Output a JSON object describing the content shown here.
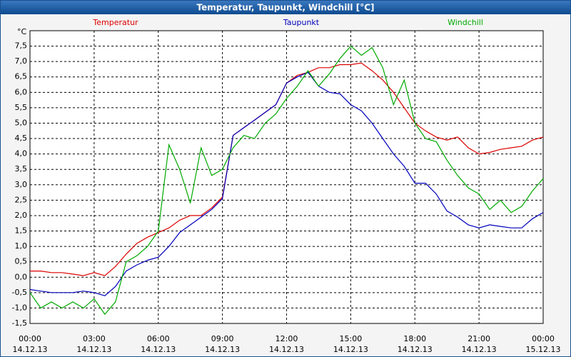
{
  "chart_data": {
    "type": "line",
    "title": "Temperatur, Taupunkt, Windchill [°C]",
    "y_unit": "°C",
    "x": [
      0,
      0.5,
      1,
      1.5,
      2,
      2.5,
      3,
      3.5,
      4,
      4.5,
      5,
      5.5,
      6,
      6.5,
      7,
      7.5,
      8,
      8.5,
      9,
      9.5,
      10,
      10.5,
      11,
      11.5,
      12,
      12.5,
      13,
      13.5,
      14,
      14.5,
      15,
      15.5,
      16,
      16.5,
      17,
      17.5,
      18,
      18.5,
      19,
      19.5,
      20,
      20.5,
      21,
      21.5,
      22,
      22.5,
      23,
      23.5,
      24
    ],
    "series": [
      {
        "name": "Temperatur",
        "color": "#dd0000",
        "values": [
          0.2,
          0.2,
          0.15,
          0.15,
          0.1,
          0.05,
          0.15,
          0.05,
          0.35,
          0.75,
          1.1,
          1.3,
          1.45,
          1.6,
          1.85,
          2.0,
          2.0,
          2.25,
          2.6,
          4.6,
          4.85,
          5.1,
          5.35,
          5.6,
          6.3,
          6.55,
          6.65,
          6.8,
          6.8,
          6.9,
          6.9,
          6.95,
          6.7,
          6.4,
          6.0,
          5.5,
          5.0,
          4.75,
          4.55,
          4.45,
          4.55,
          4.2,
          4.0,
          4.05,
          4.15,
          4.2,
          4.25,
          4.45,
          4.55
        ]
      },
      {
        "name": "Taupunkt",
        "color": "#0000bb",
        "values": [
          -0.4,
          -0.45,
          -0.5,
          -0.5,
          -0.5,
          -0.45,
          -0.5,
          -0.6,
          -0.3,
          0.2,
          0.4,
          0.55,
          0.65,
          1.0,
          1.45,
          1.7,
          1.95,
          2.2,
          2.55,
          4.6,
          4.85,
          5.1,
          5.35,
          5.6,
          6.3,
          6.5,
          6.65,
          6.2,
          6.0,
          5.95,
          5.6,
          5.4,
          5.0,
          4.5,
          4.0,
          3.6,
          3.05,
          3.05,
          2.7,
          2.15,
          1.95,
          1.7,
          1.6,
          1.7,
          1.65,
          1.6,
          1.6,
          1.9,
          2.1
        ]
      },
      {
        "name": "Windchill",
        "color": "#00aa00",
        "values": [
          -0.5,
          -1.0,
          -0.8,
          -1.0,
          -0.8,
          -1.0,
          -0.7,
          -1.2,
          -0.8,
          0.5,
          0.7,
          1.0,
          1.5,
          4.3,
          3.5,
          2.4,
          4.2,
          3.3,
          3.5,
          4.2,
          4.6,
          4.5,
          5.0,
          5.3,
          5.8,
          6.2,
          6.7,
          6.2,
          6.6,
          7.1,
          7.5,
          7.2,
          7.45,
          6.8,
          5.6,
          6.4,
          5.0,
          4.5,
          4.4,
          3.8,
          3.3,
          2.9,
          2.7,
          2.2,
          2.5,
          2.1,
          2.3,
          2.8,
          3.2
        ]
      }
    ],
    "xlim": [
      0,
      24
    ],
    "xticks": [
      {
        "value": 0,
        "label": "00:00"
      },
      {
        "value": 3,
        "label": "03:00"
      },
      {
        "value": 6,
        "label": "06:00"
      },
      {
        "value": 9,
        "label": "09:00"
      },
      {
        "value": 12,
        "label": "12:00"
      },
      {
        "value": 15,
        "label": "15:00"
      },
      {
        "value": 18,
        "label": "18:00"
      },
      {
        "value": 21,
        "label": "21:00"
      },
      {
        "value": 24,
        "label": "00:00"
      }
    ],
    "xtick_dates": [
      "14.12.13",
      "14.12.13",
      "14.12.13",
      "14.12.13",
      "14.12.13",
      "14.12.13",
      "14.12.13",
      "14.12.13",
      "15.12.13"
    ],
    "ylim": [
      -1.5,
      8
    ],
    "yticks": [
      {
        "value": -1.5,
        "label": "-1,5"
      },
      {
        "value": -1,
        "label": "-1,0"
      },
      {
        "value": -0.5,
        "label": "-0,5"
      },
      {
        "value": 0,
        "label": "0,0"
      },
      {
        "value": 0.5,
        "label": "0,5"
      },
      {
        "value": 1,
        "label": "1,0"
      },
      {
        "value": 1.5,
        "label": "1,5"
      },
      {
        "value": 2,
        "label": "2,0"
      },
      {
        "value": 2.5,
        "label": "2,5"
      },
      {
        "value": 3,
        "label": "3,0"
      },
      {
        "value": 3.5,
        "label": "3,5"
      },
      {
        "value": 4,
        "label": "4,0"
      },
      {
        "value": 4.5,
        "label": "4,5"
      },
      {
        "value": 5,
        "label": "5,0"
      },
      {
        "value": 5.5,
        "label": "5,5"
      },
      {
        "value": 6,
        "label": "6,0"
      },
      {
        "value": 6.5,
        "label": "6,5"
      },
      {
        "value": 7,
        "label": "7,0"
      },
      {
        "value": 7.5,
        "label": "7,5"
      }
    ],
    "grid": true
  }
}
